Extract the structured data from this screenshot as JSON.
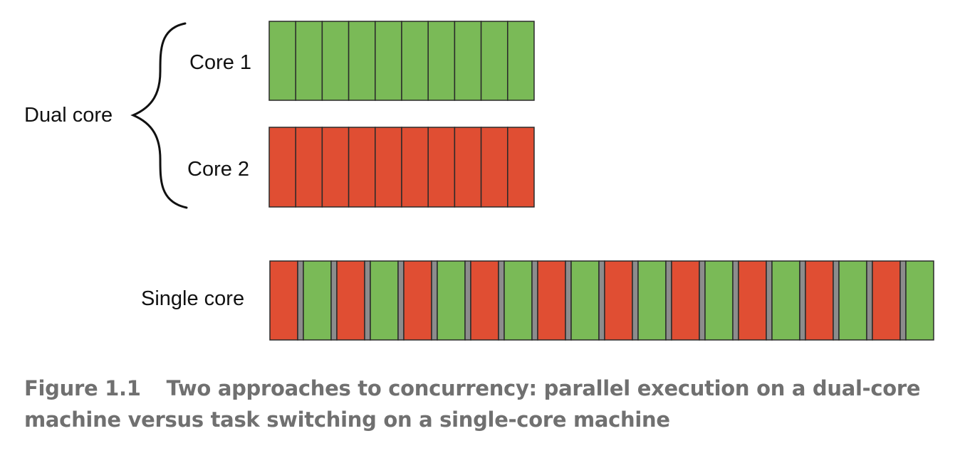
{
  "labels": {
    "core1": "Core 1",
    "core2": "Core 2",
    "dual": "Dual core",
    "single": "Single core"
  },
  "caption": {
    "number": "Figure 1.1",
    "text": "Two approaches to concurrency: parallel execution on a dual-core machine versus task switching on a single-core machine"
  },
  "colors": {
    "task_a": "#7ABA57",
    "task_b": "#E04E33",
    "switch": "#8C8C8C",
    "stroke": "#2A2A2A"
  },
  "rows": {
    "core1": {
      "task": "task_a",
      "slices": 10
    },
    "core2": {
      "task": "task_b",
      "slices": 10
    },
    "single": {
      "sequence": [
        "task_b",
        "task_a",
        "task_b",
        "task_a",
        "task_b",
        "task_a",
        "task_b",
        "task_a",
        "task_b",
        "task_a",
        "task_b",
        "task_a",
        "task_b",
        "task_a",
        "task_b",
        "task_a",
        "task_b",
        "task_a",
        "task_b",
        "task_a"
      ],
      "switch_between": true
    }
  }
}
